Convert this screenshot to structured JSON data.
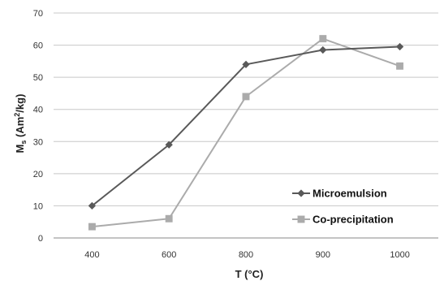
{
  "chart_data": {
    "type": "line",
    "x": [
      400,
      600,
      800,
      900,
      1000
    ],
    "series": [
      {
        "name": "Microemulsion",
        "values": [
          10,
          29,
          54,
          58.5,
          59.5
        ],
        "color": "#595959",
        "marker": "diamond"
      },
      {
        "name": "Co-precipitation",
        "values": [
          3.5,
          6,
          44,
          62,
          53.5
        ],
        "color": "#ababab",
        "marker": "square"
      }
    ],
    "xticks": [
      "400",
      "600",
      "800",
      "900",
      "1000"
    ],
    "yticks": [
      "0",
      "10",
      "20",
      "30",
      "40",
      "50",
      "60",
      "70"
    ],
    "ylim": [
      0,
      70
    ],
    "xlabel": "T (°C)",
    "ylabel": {
      "base": "M",
      "sub": "s",
      "pre": " (Am",
      "sup": "2",
      "post": "/kg)"
    },
    "grid": true,
    "legend_position": "bottom-right"
  }
}
